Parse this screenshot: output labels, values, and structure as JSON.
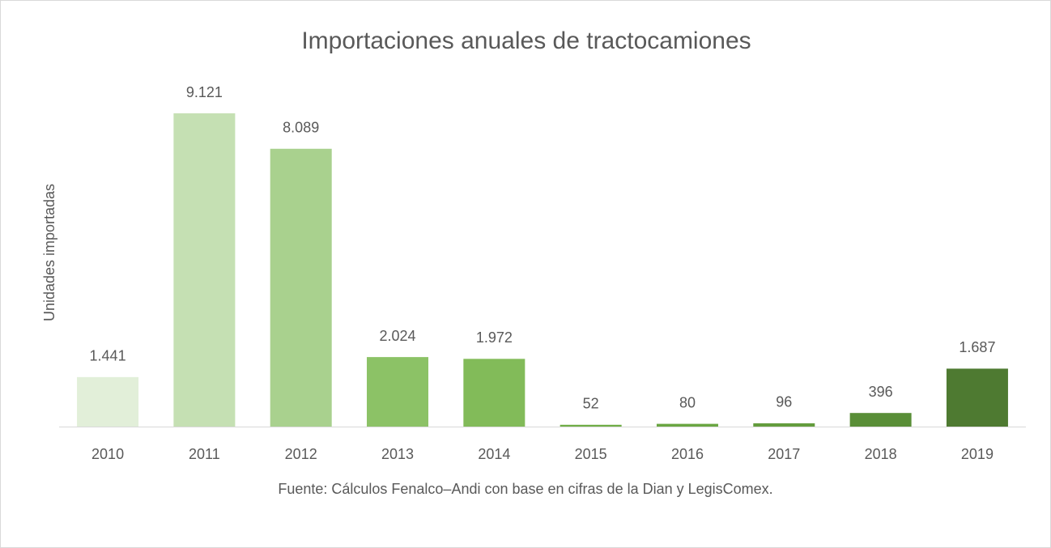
{
  "chart_data": {
    "type": "bar",
    "title": "Importaciones anuales de tractocamiones",
    "y_label": "Unidades importadas",
    "source": "Fuente: Cálculos Fenalco–Andi con base en cifras de la Dian y LegisComex.",
    "categories": [
      "2010",
      "2011",
      "2012",
      "2013",
      "2014",
      "2015",
      "2016",
      "2017",
      "2018",
      "2019"
    ],
    "values": [
      1441,
      9121,
      8089,
      2024,
      1972,
      52,
      80,
      96,
      396,
      1687
    ],
    "value_labels": [
      "1.441",
      "9.121",
      "8.089",
      "2.024",
      "1.972",
      "52",
      "80",
      "96",
      "396",
      "1.687"
    ],
    "colors": [
      "#e2efd9",
      "#c5e0b3",
      "#a9d18e",
      "#8cc266",
      "#82bb59",
      "#70ad47",
      "#6aa642",
      "#639c3d",
      "#598e37",
      "#4e7a31"
    ]
  }
}
